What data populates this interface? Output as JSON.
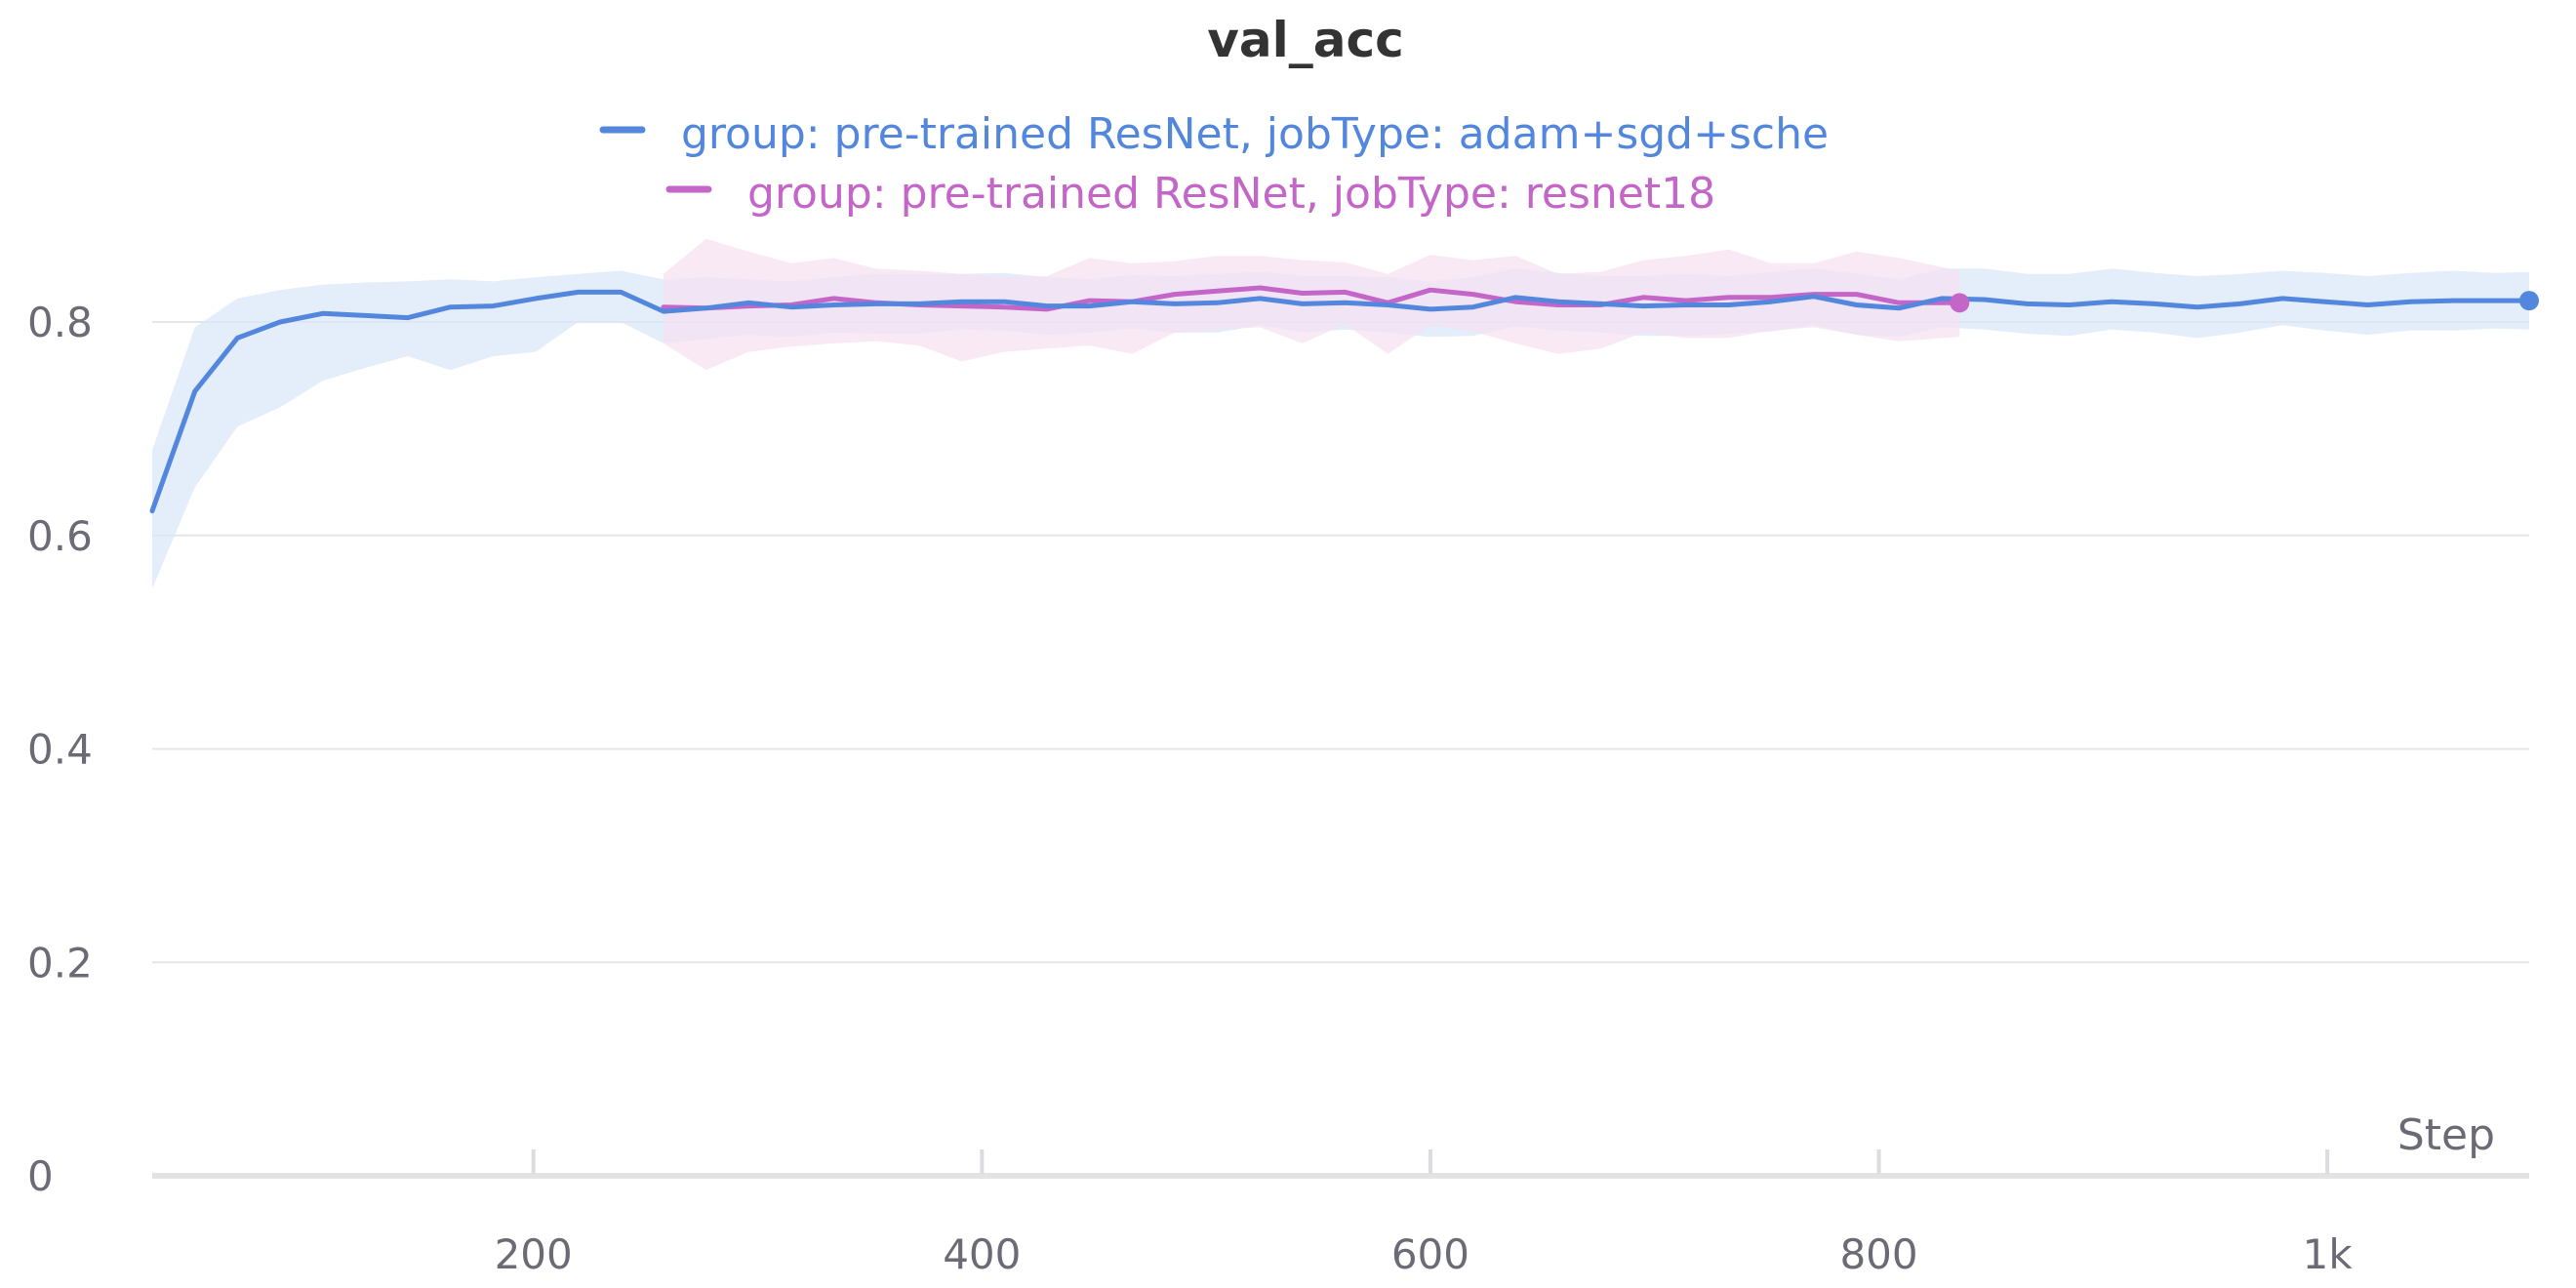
{
  "chart_data": {
    "type": "line",
    "title": "val_acc",
    "xlabel": "Step",
    "ylabel": "",
    "xlim": [
      30,
      1090
    ],
    "ylim": [
      0,
      0.9
    ],
    "grid": true,
    "legend_position": "top-center",
    "x_ticks": [
      {
        "value": 200,
        "label": "200"
      },
      {
        "value": 400,
        "label": "400"
      },
      {
        "value": 600,
        "label": "600"
      },
      {
        "value": 800,
        "label": "800"
      },
      {
        "value": 1000,
        "label": "1k"
      }
    ],
    "y_ticks": [
      {
        "value": 0,
        "label": "0"
      },
      {
        "value": 0.2,
        "label": "0.2"
      },
      {
        "value": 0.4,
        "label": "0.4"
      },
      {
        "value": 0.6,
        "label": "0.6"
      },
      {
        "value": 0.8,
        "label": "0.8"
      }
    ],
    "series": [
      {
        "name": "group: pre-trained ResNet, jobType: adam+sgd+sche",
        "color": "#5387dd",
        "band_color": "#d9e6f8",
        "x": [
          30,
          49,
          68,
          87,
          106,
          125,
          144,
          163,
          182,
          201,
          220,
          239,
          258,
          277,
          296,
          315,
          334,
          353,
          372,
          391,
          410,
          429,
          448,
          467,
          486,
          505,
          524,
          543,
          562,
          581,
          600,
          619,
          638,
          657,
          676,
          695,
          714,
          733,
          752,
          771,
          790,
          809,
          828,
          847,
          866,
          885,
          904,
          923,
          942,
          961,
          980,
          999,
          1018,
          1037,
          1056,
          1075,
          1090
        ],
        "y": [
          0.623,
          0.735,
          0.785,
          0.8,
          0.808,
          0.806,
          0.804,
          0.814,
          0.815,
          0.822,
          0.828,
          0.828,
          0.81,
          0.813,
          0.818,
          0.814,
          0.816,
          0.817,
          0.817,
          0.819,
          0.819,
          0.815,
          0.815,
          0.819,
          0.817,
          0.818,
          0.822,
          0.817,
          0.818,
          0.816,
          0.812,
          0.814,
          0.823,
          0.819,
          0.817,
          0.815,
          0.816,
          0.816,
          0.819,
          0.824,
          0.816,
          0.813,
          0.822,
          0.821,
          0.817,
          0.816,
          0.819,
          0.817,
          0.814,
          0.817,
          0.822,
          0.819,
          0.816,
          0.819,
          0.82,
          0.82,
          0.82
        ],
        "band_upper": [
          0.68,
          0.795,
          0.822,
          0.83,
          0.835,
          0.837,
          0.838,
          0.84,
          0.838,
          0.842,
          0.845,
          0.848,
          0.84,
          0.842,
          0.84,
          0.838,
          0.842,
          0.845,
          0.845,
          0.845,
          0.846,
          0.842,
          0.84,
          0.844,
          0.843,
          0.845,
          0.847,
          0.843,
          0.843,
          0.842,
          0.838,
          0.842,
          0.85,
          0.846,
          0.843,
          0.843,
          0.845,
          0.843,
          0.847,
          0.85,
          0.845,
          0.84,
          0.85,
          0.85,
          0.845,
          0.845,
          0.85,
          0.846,
          0.843,
          0.845,
          0.848,
          0.846,
          0.843,
          0.846,
          0.848,
          0.846,
          0.847
        ],
        "band_lower": [
          0.55,
          0.645,
          0.702,
          0.72,
          0.745,
          0.757,
          0.768,
          0.755,
          0.768,
          0.772,
          0.8,
          0.8,
          0.78,
          0.784,
          0.788,
          0.786,
          0.79,
          0.789,
          0.789,
          0.793,
          0.792,
          0.788,
          0.79,
          0.794,
          0.79,
          0.79,
          0.797,
          0.79,
          0.793,
          0.79,
          0.786,
          0.787,
          0.796,
          0.792,
          0.79,
          0.787,
          0.787,
          0.789,
          0.791,
          0.797,
          0.788,
          0.786,
          0.795,
          0.793,
          0.789,
          0.787,
          0.793,
          0.79,
          0.785,
          0.79,
          0.797,
          0.792,
          0.788,
          0.792,
          0.792,
          0.794,
          0.793
        ]
      },
      {
        "name": "group: pre-trained ResNet, jobType: resnet18",
        "color": "#c466c8",
        "band_color": "#f7dff1",
        "x": [
          258,
          277,
          296,
          315,
          334,
          353,
          372,
          391,
          410,
          429,
          448,
          467,
          486,
          505,
          524,
          543,
          562,
          581,
          600,
          619,
          638,
          657,
          676,
          695,
          714,
          733,
          752,
          771,
          790,
          809,
          836
        ],
        "y": [
          0.814,
          0.813,
          0.815,
          0.816,
          0.822,
          0.818,
          0.816,
          0.815,
          0.814,
          0.812,
          0.82,
          0.819,
          0.826,
          0.829,
          0.832,
          0.827,
          0.828,
          0.818,
          0.83,
          0.826,
          0.819,
          0.816,
          0.816,
          0.823,
          0.82,
          0.823,
          0.823,
          0.826,
          0.826,
          0.818,
          0.818
        ],
        "band_upper": [
          0.845,
          0.878,
          0.866,
          0.855,
          0.86,
          0.85,
          0.848,
          0.845,
          0.842,
          0.843,
          0.86,
          0.855,
          0.857,
          0.862,
          0.862,
          0.858,
          0.856,
          0.845,
          0.863,
          0.858,
          0.862,
          0.845,
          0.847,
          0.858,
          0.862,
          0.868,
          0.855,
          0.855,
          0.866,
          0.86,
          0.848
        ],
        "band_lower": [
          0.78,
          0.755,
          0.772,
          0.777,
          0.78,
          0.782,
          0.778,
          0.763,
          0.772,
          0.775,
          0.778,
          0.77,
          0.79,
          0.793,
          0.795,
          0.78,
          0.798,
          0.77,
          0.797,
          0.791,
          0.78,
          0.77,
          0.775,
          0.79,
          0.785,
          0.785,
          0.792,
          0.795,
          0.788,
          0.782,
          0.786
        ]
      }
    ]
  }
}
